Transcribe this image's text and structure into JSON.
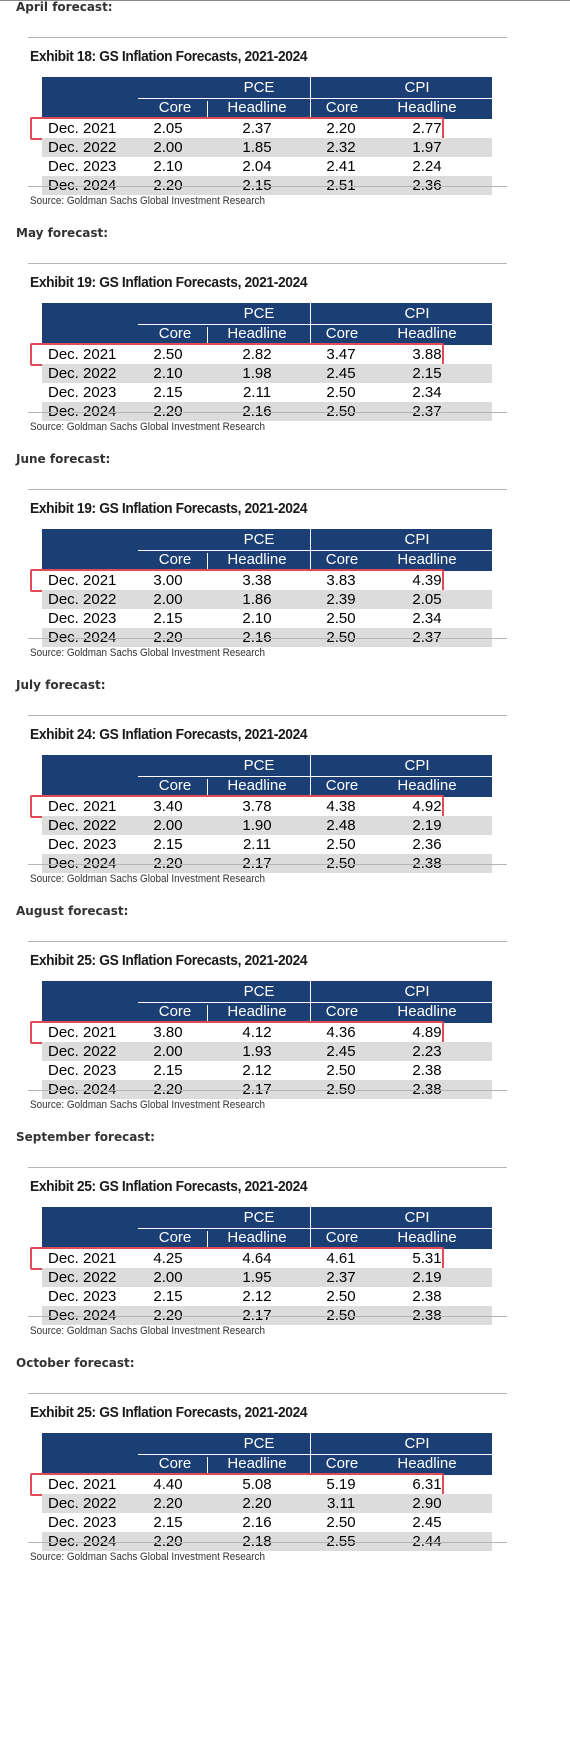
{
  "source": "Source: Goldman Sachs Global Investment Research",
  "headers": {
    "pce": "PCE",
    "cpi": "CPI",
    "core": "Core",
    "headline": "Headline"
  },
  "blocks": [
    {
      "label": "April forecast:",
      "title": "Exhibit 18: GS Inflation Forecasts, 2021-2024",
      "rows": [
        [
          "Dec. 2021",
          "2.05",
          "2.37",
          "2.20",
          "2.77"
        ],
        [
          "Dec. 2022",
          "2.00",
          "1.85",
          "2.32",
          "1.97"
        ],
        [
          "Dec. 2023",
          "2.10",
          "2.04",
          "2.41",
          "2.24"
        ],
        [
          "Dec. 2024",
          "2.20",
          "2.15",
          "2.51",
          "2.36"
        ]
      ]
    },
    {
      "label": "May forecast:",
      "title": "Exhibit 19: GS Inflation Forecasts, 2021-2024",
      "rows": [
        [
          "Dec. 2021",
          "2.50",
          "2.82",
          "3.47",
          "3.88"
        ],
        [
          "Dec. 2022",
          "2.10",
          "1.98",
          "2.45",
          "2.15"
        ],
        [
          "Dec. 2023",
          "2.15",
          "2.11",
          "2.50",
          "2.34"
        ],
        [
          "Dec. 2024",
          "2.20",
          "2.16",
          "2.50",
          "2.37"
        ]
      ]
    },
    {
      "label": "June forecast:",
      "title": "Exhibit 19: GS Inflation Forecasts, 2021-2024",
      "rows": [
        [
          "Dec. 2021",
          "3.00",
          "3.38",
          "3.83",
          "4.39"
        ],
        [
          "Dec. 2022",
          "2.00",
          "1.86",
          "2.39",
          "2.05"
        ],
        [
          "Dec. 2023",
          "2.15",
          "2.10",
          "2.50",
          "2.34"
        ],
        [
          "Dec. 2024",
          "2.20",
          "2.16",
          "2.50",
          "2.37"
        ]
      ]
    },
    {
      "label": "July forecast:",
      "title": "Exhibit 24: GS Inflation Forecasts, 2021-2024",
      "rows": [
        [
          "Dec. 2021",
          "3.40",
          "3.78",
          "4.38",
          "4.92"
        ],
        [
          "Dec. 2022",
          "2.00",
          "1.90",
          "2.48",
          "2.19"
        ],
        [
          "Dec. 2023",
          "2.15",
          "2.11",
          "2.50",
          "2.36"
        ],
        [
          "Dec. 2024",
          "2.20",
          "2.17",
          "2.50",
          "2.38"
        ]
      ]
    },
    {
      "label": "August forecast:",
      "title": "Exhibit 25: GS Inflation Forecasts, 2021-2024",
      "rows": [
        [
          "Dec. 2021",
          "3.80",
          "4.12",
          "4.36",
          "4.89"
        ],
        [
          "Dec. 2022",
          "2.00",
          "1.93",
          "2.45",
          "2.23"
        ],
        [
          "Dec. 2023",
          "2.15",
          "2.12",
          "2.50",
          "2.38"
        ],
        [
          "Dec. 2024",
          "2.20",
          "2.17",
          "2.50",
          "2.38"
        ]
      ]
    },
    {
      "label": "September forecast:",
      "title": "Exhibit 25: GS Inflation Forecasts, 2021-2024",
      "rows": [
        [
          "Dec. 2021",
          "4.25",
          "4.64",
          "4.61",
          "5.31"
        ],
        [
          "Dec. 2022",
          "2.00",
          "1.95",
          "2.37",
          "2.19"
        ],
        [
          "Dec. 2023",
          "2.15",
          "2.12",
          "2.50",
          "2.38"
        ],
        [
          "Dec. 2024",
          "2.20",
          "2.17",
          "2.50",
          "2.38"
        ]
      ]
    },
    {
      "label": "October forecast:",
      "title": "Exhibit 25: GS Inflation Forecasts, 2021-2024",
      "rows": [
        [
          "Dec. 2021",
          "4.40",
          "5.08",
          "5.19",
          "6.31"
        ],
        [
          "Dec. 2022",
          "2.20",
          "2.20",
          "3.11",
          "2.90"
        ],
        [
          "Dec. 2023",
          "2.15",
          "2.16",
          "2.50",
          "2.45"
        ],
        [
          "Dec. 2024",
          "2.20",
          "2.18",
          "2.55",
          "2.44"
        ]
      ]
    }
  ]
}
